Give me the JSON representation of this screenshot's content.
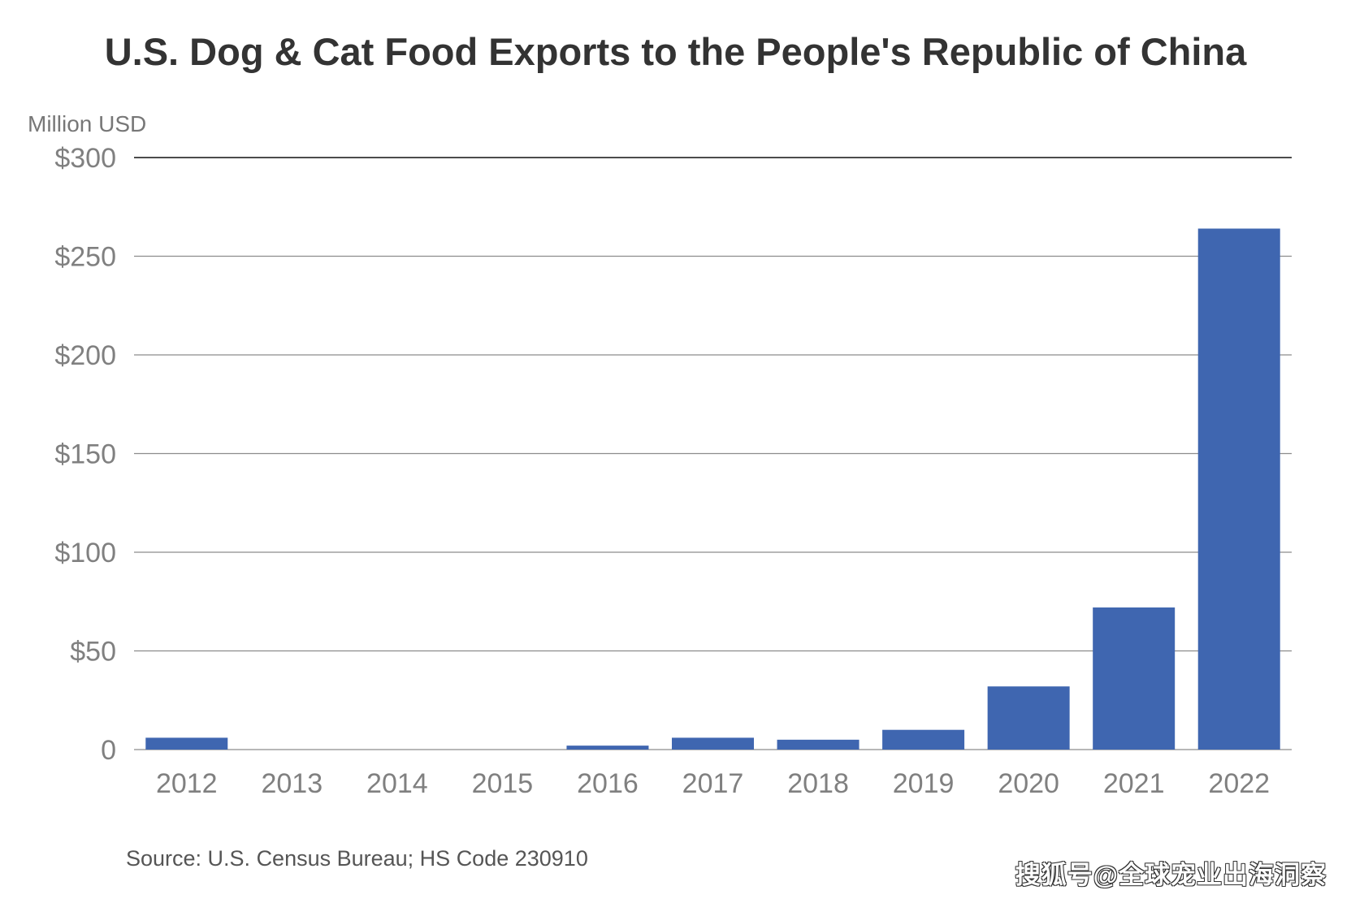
{
  "chart_data": {
    "type": "bar",
    "title": "U.S. Dog & Cat Food Exports to the People's Republic of China",
    "ylabel": "Million USD",
    "xlabel": "",
    "categories": [
      "2012",
      "2013",
      "2014",
      "2015",
      "2016",
      "2017",
      "2018",
      "2019",
      "2020",
      "2021",
      "2022"
    ],
    "values": [
      6,
      0,
      0,
      0,
      2,
      6,
      5,
      10,
      32,
      72,
      264
    ],
    "ylim": [
      0,
      300
    ],
    "yticks": [
      0,
      50,
      100,
      150,
      200,
      250,
      300
    ],
    "ytick_labels": [
      "0",
      "$50",
      "$100",
      "$150",
      "$200",
      "$250",
      "$300"
    ],
    "grid": true,
    "legend": "none",
    "bar_color": "#3f66b0",
    "gridline_color": "#8c8c8c",
    "top_line_color": "#111111"
  },
  "source": "Source: U.S. Census Bureau; HS Code 230910",
  "watermark": "搜狐号@全球宠业出海洞察"
}
